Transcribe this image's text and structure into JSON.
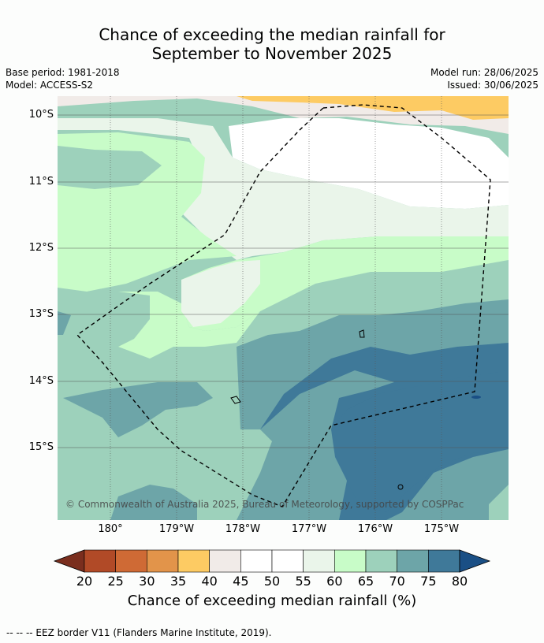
{
  "title_line1": "Chance of exceeding the median rainfall for",
  "title_line2": "September to November 2025",
  "base_period": "Base period: 1981-2018",
  "model": "Model: ACCESS-S2",
  "model_run": "Model run: 28/06/2025",
  "issued": "Issued: 30/06/2025",
  "lat_labels": [
    "10°S",
    "11°S",
    "12°S",
    "13°S",
    "14°S",
    "15°S"
  ],
  "lon_labels": [
    "180°",
    "179°W",
    "178°W",
    "177°W",
    "176°W",
    "175°W"
  ],
  "copyright": "© Commonwealth of Australia 2025, Bureau of Meteorology, supported by COSPPac",
  "colorbar": {
    "ticks": [
      "20",
      "25",
      "30",
      "35",
      "40",
      "45",
      "50",
      "55",
      "60",
      "65",
      "70",
      "75",
      "80"
    ],
    "colors": [
      "#7a2e1e",
      "#b14a27",
      "#cf6a35",
      "#e2944a",
      "#fdcb63",
      "#f1ebe8",
      "#ffffff",
      "#ffffff",
      "#eaf5ea",
      "#c8fcc8",
      "#9dd1bb",
      "#6da5a8",
      "#3f7999",
      "#1a4f85"
    ],
    "label": "Chance of exceeding median rainfall (%)"
  },
  "footnote": "-- -- -- EEZ border V11 (Flanders Marine Institute, 2019)."
}
